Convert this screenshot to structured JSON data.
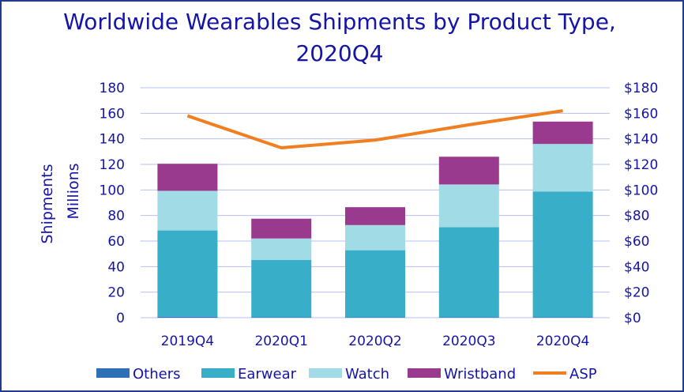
{
  "chart_data": {
    "type": "bar",
    "stacked": true,
    "title": "Worldwide Wearables Shipments by Product Type, 2020Q4",
    "ylabel": "Shipments",
    "ylabel2": "Millions",
    "categories": [
      "2019Q4",
      "2020Q1",
      "2020Q2",
      "2020Q3",
      "2020Q4"
    ],
    "ylim": [
      0,
      180
    ],
    "y2lim": [
      0,
      180
    ],
    "yticks": [
      "0",
      "20",
      "40",
      "60",
      "80",
      "100",
      "120",
      "140",
      "160",
      "180"
    ],
    "y2ticks": [
      "$0",
      "$20",
      "$40",
      "$60",
      "$80",
      "$100",
      "$120",
      "$140",
      "$160",
      "$180"
    ],
    "series": [
      {
        "name": "Others",
        "kind": "bar",
        "color": "#2e6fb8",
        "values": [
          0.8,
          0.3,
          0.3,
          0.3,
          0.3
        ]
      },
      {
        "name": "Earwear",
        "kind": "bar",
        "color": "#38aec9",
        "values": [
          67.5,
          45.0,
          52.5,
          70.5,
          98.5
        ]
      },
      {
        "name": "Watch",
        "kind": "bar",
        "color": "#a1dbe6",
        "values": [
          31.0,
          16.7,
          19.7,
          33.5,
          37.2
        ]
      },
      {
        "name": "Wristband",
        "kind": "bar",
        "color": "#9a3a8f",
        "values": [
          21.2,
          15.5,
          14.0,
          21.7,
          17.5
        ]
      },
      {
        "name": "ASP",
        "kind": "line",
        "axis": "right",
        "color": "#f07f22",
        "values": [
          158,
          133,
          139,
          151,
          162
        ]
      }
    ],
    "grid": true,
    "legend": "bottom"
  }
}
